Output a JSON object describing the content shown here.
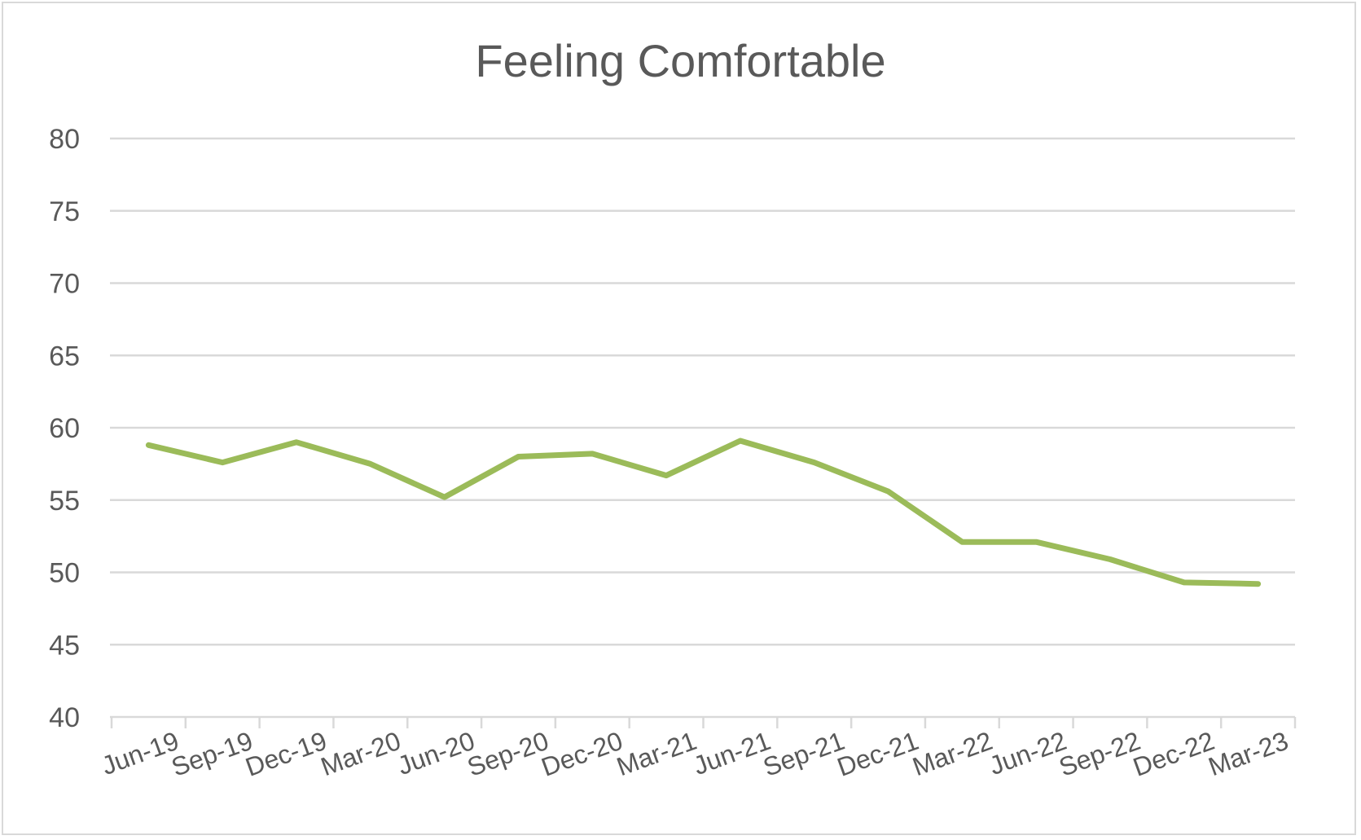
{
  "chart_data": {
    "type": "line",
    "title": "Feeling Comfortable",
    "xlabel": "",
    "ylabel": "",
    "categories": [
      "Jun-19",
      "Sep-19",
      "Dec-19",
      "Mar-20",
      "Jun-20",
      "Sep-20",
      "Dec-20",
      "Mar-21",
      "Jun-21",
      "Sep-21",
      "Dec-21",
      "Mar-22",
      "Jun-22",
      "Sep-22",
      "Dec-22",
      "Mar-23"
    ],
    "series": [
      {
        "values": [
          58.8,
          57.6,
          59.0,
          57.5,
          55.2,
          58.0,
          58.2,
          56.7,
          59.1,
          57.6,
          55.6,
          52.1,
          52.1,
          50.9,
          49.3,
          49.2
        ],
        "color": "#9bbb59"
      }
    ],
    "ylim": [
      40,
      80
    ],
    "yticks": [
      40,
      45,
      50,
      55,
      60,
      65,
      70,
      75,
      80
    ],
    "grid": true,
    "legend": "none",
    "colors": {
      "gridline": "#d9d9d9",
      "axis": "#d9d9d9",
      "text": "#595959",
      "line": "#9bbb59"
    }
  }
}
